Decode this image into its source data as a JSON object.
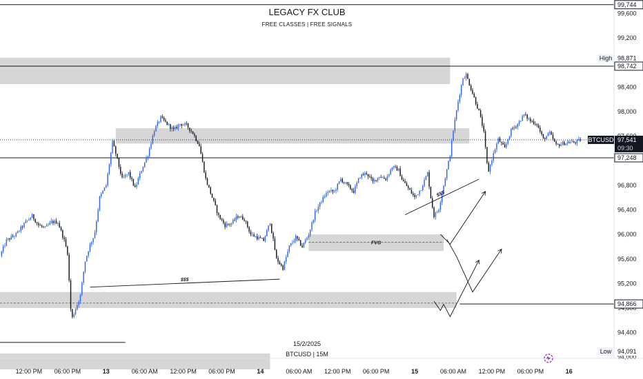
{
  "header": {
    "title": "LEGACY FX CLUB",
    "subtitle": "FREE CLASSES | FREE SIGNALS"
  },
  "colors": {
    "up": "#2962ff",
    "down": "#131722",
    "zone": "#c8c8c8",
    "line": "#131722",
    "tag_bg": "#131722",
    "tag_text": "#ffffff"
  },
  "chart_data": {
    "type": "candlestick",
    "symbol": "BTCUSD",
    "interval_label": "BTCUSD | 15M",
    "date_label": "15/2/2025",
    "ylim": [
      93980,
      99820
    ],
    "y_ticks": [
      "99,600",
      "99,200",
      "98,400",
      "98,000",
      "97,600",
      "96,800",
      "96,400",
      "96,000",
      "95,600",
      "95,200",
      "94,800",
      "94,400",
      "94,000"
    ],
    "y_tick_values": [
      99600,
      99200,
      98400,
      98000,
      97600,
      96800,
      96400,
      96000,
      95600,
      95200,
      94800,
      94400,
      94000
    ],
    "x_ticks": [
      {
        "label": "12:00 PM",
        "bold": false
      },
      {
        "label": "06:00 PM",
        "bold": false
      },
      {
        "label": "13",
        "bold": true
      },
      {
        "label": "06:00 AM",
        "bold": false
      },
      {
        "label": "12:00 PM",
        "bold": false
      },
      {
        "label": "06:00 PM",
        "bold": false
      },
      {
        "label": "14",
        "bold": true
      },
      {
        "label": "06:00 AM",
        "bold": false
      },
      {
        "label": "12:00 PM",
        "bold": false
      },
      {
        "label": "06:00 PM",
        "bold": false
      },
      {
        "label": "15",
        "bold": true
      },
      {
        "label": "06:00 AM",
        "bold": false
      },
      {
        "label": "12:00 PM",
        "bold": false
      },
      {
        "label": "06:00 PM",
        "bold": false
      },
      {
        "label": "16",
        "bold": true
      }
    ],
    "x_tick_hours": [
      12,
      18,
      24,
      30,
      36,
      42,
      48,
      54,
      60,
      66,
      72,
      78,
      84,
      90,
      96
    ],
    "hour_range": [
      7.5,
      103
    ],
    "price_tags": [
      {
        "label": "99,744",
        "value": 99744,
        "style": "outline"
      },
      {
        "label": "98,871",
        "value": 98871,
        "style": "plain",
        "prefix": "High"
      },
      {
        "label": "98,742",
        "value": 98742,
        "style": "outline"
      },
      {
        "label": "97,541",
        "value": 97541,
        "style": "dark",
        "prefix": "BTCUSD",
        "sub": "09:30"
      },
      {
        "label": "97,248",
        "value": 97248,
        "style": "outline"
      },
      {
        "label": "94,866",
        "value": 94866,
        "style": "outline"
      },
      {
        "label": "94,091",
        "value": 94091,
        "style": "plain",
        "prefix": "Low"
      }
    ],
    "zones": [
      {
        "h0": 7.5,
        "h1": 77.5,
        "y0": 98880,
        "y1": 98450
      },
      {
        "h0": 25.5,
        "h1": 80.5,
        "y0": 97730,
        "y1": 97480
      },
      {
        "h0": 55.5,
        "h1": 76.5,
        "y0": 96000,
        "y1": 95730,
        "label": "FVG",
        "mid": 95870
      },
      {
        "h0": 7.5,
        "h1": 78.5,
        "y0": 95060,
        "y1": 94800,
        "mid": 94880
      },
      {
        "h0": 7.5,
        "h1": 49.5,
        "y0": 94060,
        "y1": 93800
      }
    ],
    "hlines": [
      {
        "value": 99744,
        "h0": 7.5,
        "h1": 103
      },
      {
        "value": 98742,
        "h0": 7.5,
        "h1": 103
      },
      {
        "value": 97248,
        "h0": 7.5,
        "h1": 103
      },
      {
        "value": 94866,
        "h0": 79,
        "h1": 103
      },
      {
        "value": 94240,
        "h0": 7.5,
        "h1": 27
      }
    ],
    "liquidity_lines": [
      {
        "label": "$$$",
        "h0": 21.5,
        "v0": 95140,
        "h1": 51,
        "v1": 95270
      },
      {
        "label": "$$$",
        "h0": 70.5,
        "v0": 96320,
        "h1": 82,
        "v1": 96900
      }
    ],
    "projection_paths": [
      [
        [
          76,
          96000
        ],
        [
          77.5,
          95840
        ],
        [
          83,
          96700
        ]
      ],
      [
        [
          77,
          95920
        ],
        [
          78.5,
          95640
        ],
        [
          81,
          95060
        ],
        [
          85.5,
          95760
        ]
      ],
      [
        [
          75,
          94910
        ],
        [
          76,
          94760
        ],
        [
          76.5,
          94860
        ],
        [
          77.5,
          94660
        ],
        [
          82,
          95580
        ]
      ]
    ],
    "keypoints": [
      [
        7.5,
        95650
      ],
      [
        8.5,
        95900
      ],
      [
        10,
        96000
      ],
      [
        11.5,
        96200
      ],
      [
        12.5,
        96300
      ],
      [
        13.5,
        96150
      ],
      [
        14.5,
        96100
      ],
      [
        15.5,
        96200
      ],
      [
        16.5,
        96200
      ],
      [
        17.5,
        95900
      ],
      [
        18.0,
        95700
      ],
      [
        18.6,
        94600
      ],
      [
        19.3,
        94800
      ],
      [
        20.0,
        95000
      ],
      [
        20.7,
        95550
      ],
      [
        21.4,
        95800
      ],
      [
        22.2,
        96000
      ],
      [
        23.0,
        96600
      ],
      [
        24.0,
        96800
      ],
      [
        25.0,
        97500
      ],
      [
        25.5,
        97320
      ],
      [
        26.5,
        96900
      ],
      [
        27.5,
        97000
      ],
      [
        28.5,
        96750
      ],
      [
        29.5,
        97050
      ],
      [
        30.5,
        97300
      ],
      [
        31.5,
        97700
      ],
      [
        32.5,
        97900
      ],
      [
        33.5,
        97800
      ],
      [
        34.5,
        97700
      ],
      [
        35.5,
        97800
      ],
      [
        36.5,
        97780
      ],
      [
        37.5,
        97650
      ],
      [
        38.5,
        97450
      ],
      [
        39.5,
        96900
      ],
      [
        40.5,
        96600
      ],
      [
        41.5,
        96300
      ],
      [
        42.5,
        96150
      ],
      [
        43.5,
        96180
      ],
      [
        44.5,
        96300
      ],
      [
        45.5,
        96250
      ],
      [
        46.5,
        96000
      ],
      [
        47.5,
        95950
      ],
      [
        48.5,
        95900
      ],
      [
        49.5,
        96200
      ],
      [
        50.5,
        95600
      ],
      [
        51.5,
        95450
      ],
      [
        52.5,
        95800
      ],
      [
        53.5,
        95950
      ],
      [
        54.5,
        95800
      ],
      [
        55.5,
        96000
      ],
      [
        56.5,
        96350
      ],
      [
        57.5,
        96550
      ],
      [
        58.5,
        96700
      ],
      [
        59.5,
        96700
      ],
      [
        60.5,
        96900
      ],
      [
        61.5,
        96800
      ],
      [
        62.5,
        96700
      ],
      [
        63.5,
        96950
      ],
      [
        64.5,
        97000
      ],
      [
        65.5,
        96850
      ],
      [
        66.5,
        96950
      ],
      [
        67.5,
        96900
      ],
      [
        68.5,
        97100
      ],
      [
        69.5,
        97050
      ],
      [
        70.0,
        96900
      ],
      [
        71.0,
        96750
      ],
      [
        72.0,
        96600
      ],
      [
        73.0,
        96750
      ],
      [
        74.0,
        97000
      ],
      [
        74.5,
        96600
      ],
      [
        75.0,
        96300
      ],
      [
        75.7,
        96400
      ],
      [
        76.5,
        96800
      ],
      [
        77.5,
        97300
      ],
      [
        78.0,
        97700
      ],
      [
        78.8,
        98200
      ],
      [
        79.5,
        98550
      ],
      [
        80.0,
        98600
      ],
      [
        81.0,
        98300
      ],
      [
        82.0,
        98000
      ],
      [
        82.7,
        97700
      ],
      [
        83.4,
        97000
      ],
      [
        84.2,
        97300
      ],
      [
        85.0,
        97550
      ],
      [
        86.0,
        97400
      ],
      [
        87.0,
        97700
      ],
      [
        88.0,
        97800
      ],
      [
        89.0,
        97950
      ],
      [
        90.0,
        97850
      ],
      [
        91.0,
        97800
      ],
      [
        92.0,
        97550
      ],
      [
        93.0,
        97650
      ],
      [
        94.0,
        97450
      ],
      [
        95.0,
        97480
      ],
      [
        96.0,
        97500
      ],
      [
        97.0,
        97500
      ],
      [
        97.8,
        97541
      ]
    ]
  }
}
